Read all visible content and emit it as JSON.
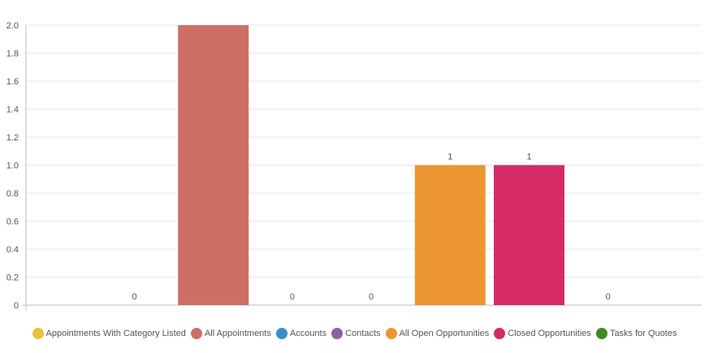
{
  "chart_data": {
    "type": "bar",
    "categories": [
      "Appointments With Category Listed",
      "All Appointments",
      "Accounts",
      "Contacts",
      "All Open Opportunities",
      "Closed Opportunities",
      "Tasks for Quotes"
    ],
    "values": [
      0,
      2,
      0,
      0,
      1,
      1,
      0
    ],
    "data_labels": [
      "0",
      "",
      "0",
      "0",
      "1",
      "1",
      "0"
    ],
    "colors": [
      "#e8c13a",
      "#cd6f64",
      "#3a8fcb",
      "#8f5fa4",
      "#ec9633",
      "#d42b67",
      "#3f8a1f"
    ],
    "ylim": [
      0,
      2
    ],
    "yticks": [
      "0",
      "0.2",
      "0.4",
      "0.6",
      "0.8",
      "1.0",
      "1.2",
      "1.4",
      "1.6",
      "1.8",
      "2.0"
    ],
    "grid": true,
    "legend_position": "bottom",
    "title": "",
    "xlabel": "",
    "ylabel": ""
  }
}
